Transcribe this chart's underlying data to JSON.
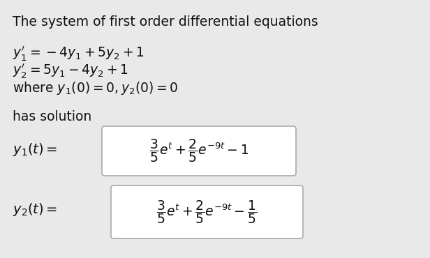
{
  "background_color": "#e9e9e9",
  "title_text": "The system of first order differential equations",
  "system_line1": "$y_1' = -4y_1 + 5y_2 + 1$",
  "system_line2": "$y_2' = 5y_1 - 4y_2 + 1$",
  "system_line3": "where $y_1(0) = 0, y_2(0) = 0$",
  "has_solution_text": "has solution",
  "sol_label1": "$y_1(t){=}$",
  "sol_formula1": "$\\dfrac{3}{5}e^t + \\dfrac{2}{5}e^{-9t} - 1$",
  "sol_label2": "$y_2(t) = $",
  "sol_formula2": "$\\dfrac{3}{5}e^t + \\dfrac{2}{5}e^{-9t} - \\dfrac{1}{5}$",
  "text_color": "#111111",
  "box_facecolor": "#ffffff",
  "box_edgecolor": "#aaaaaa",
  "title_fontsize": 13.5,
  "body_fontsize": 13.5,
  "sol_label_fontsize": 14.0,
  "sol_formula_fontsize": 13.5
}
